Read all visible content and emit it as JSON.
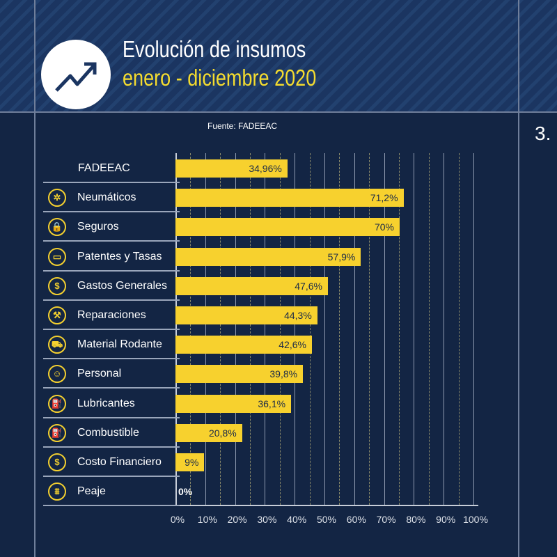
{
  "header": {
    "title": "Evolución de insumos",
    "subtitle": "enero - diciembre 2020",
    "icon": "trend-up-arrow-icon"
  },
  "source": "Fuente: FADEEAC",
  "page_number": "3.",
  "colors": {
    "background": "#132544",
    "bar": "#f7d12e",
    "subtitle": "#f4dc2f"
  },
  "chart_data": {
    "type": "bar",
    "orientation": "horizontal",
    "title": "Evolución de insumos",
    "subtitle": "enero - diciembre 2020",
    "categories": [
      "FADEEAC",
      "Neumáticos",
      "Seguros",
      "Patentes y Tasas",
      "Gastos Generales",
      "Reparaciones",
      "Material Rodante",
      "Personal",
      "Lubricantes",
      "Combustible",
      "Costo Financiero",
      "Peaje"
    ],
    "values": [
      34.96,
      71.2,
      70,
      57.9,
      47.6,
      44.3,
      42.6,
      39.8,
      36.1,
      20.8,
      9,
      0
    ],
    "value_labels": [
      "34,96%",
      "71,2%",
      "70%",
      "57,9%",
      "47,6%",
      "44,3%",
      "42,6%",
      "39,8%",
      "36,1%",
      "20,8%",
      "9%",
      "0%"
    ],
    "icons": [
      "",
      "tire-icon",
      "lock-icon",
      "license-plate-icon",
      "money-icon",
      "wrench-icon",
      "truck-icon",
      "person-icon",
      "oil-can-icon",
      "fuel-pump-icon",
      "dollar-icon",
      "toll-gate-icon"
    ],
    "icon_glyphs": [
      "",
      "✲",
      "🔒",
      "▭",
      "$",
      "⚒",
      "⛟",
      "☺",
      "⛽",
      "⛽",
      "$",
      "⩩"
    ],
    "xlim": [
      0,
      100
    ],
    "xticks": [
      "0%",
      "10%",
      "20%",
      "30%",
      "40%",
      "50%",
      "60%",
      "70%",
      "80%",
      "90%",
      "100%"
    ],
    "grid": true
  }
}
